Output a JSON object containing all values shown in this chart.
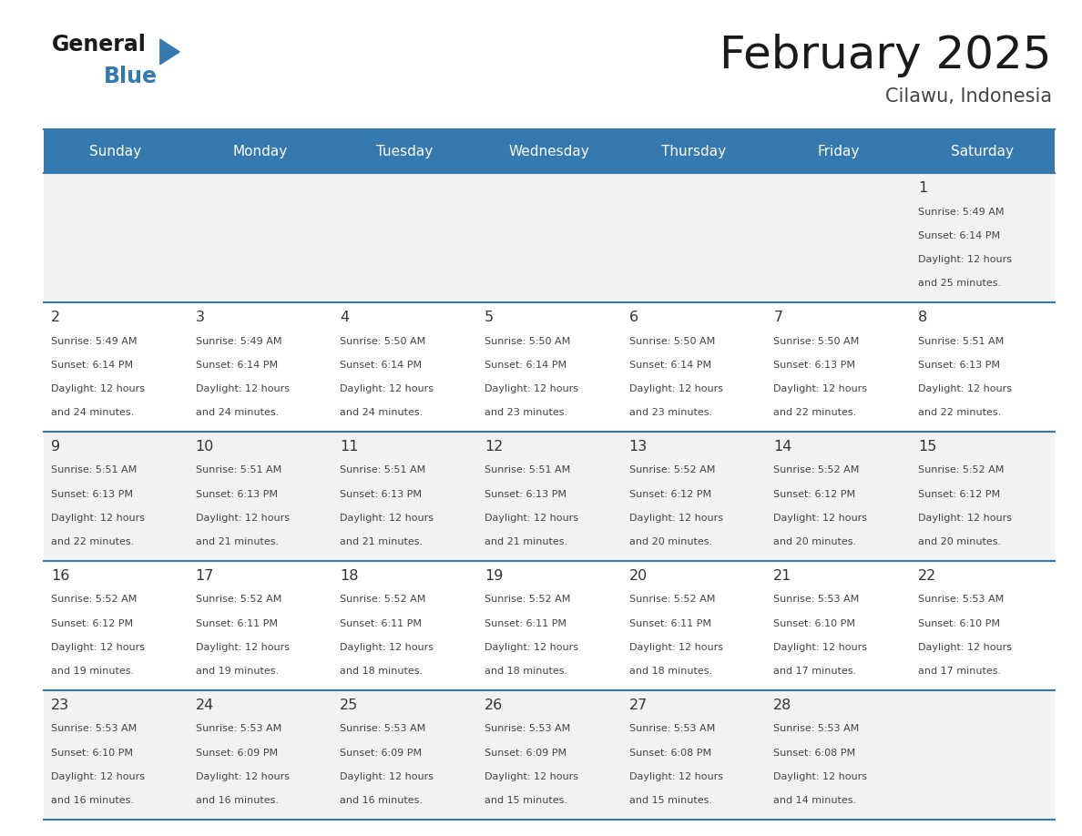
{
  "title": "February 2025",
  "subtitle": "Cilawu, Indonesia",
  "header_bg": "#3579b1",
  "header_text_color": "#ffffff",
  "day_names": [
    "Sunday",
    "Monday",
    "Tuesday",
    "Wednesday",
    "Thursday",
    "Friday",
    "Saturday"
  ],
  "cell_bg_row0": "#f2f2f2",
  "cell_bg_row1": "#ffffff",
  "cell_bg_row2": "#f2f2f2",
  "cell_bg_row3": "#ffffff",
  "cell_bg_row4": "#f2f2f2",
  "border_color": "#3579b1",
  "text_color": "#444444",
  "date_color": "#333333",
  "days": [
    {
      "date": 1,
      "col": 6,
      "row": 0,
      "sunrise": "5:49 AM",
      "sunset": "6:14 PM",
      "daylight": "12 hours and 25 minutes"
    },
    {
      "date": 2,
      "col": 0,
      "row": 1,
      "sunrise": "5:49 AM",
      "sunset": "6:14 PM",
      "daylight": "12 hours and 24 minutes"
    },
    {
      "date": 3,
      "col": 1,
      "row": 1,
      "sunrise": "5:49 AM",
      "sunset": "6:14 PM",
      "daylight": "12 hours and 24 minutes"
    },
    {
      "date": 4,
      "col": 2,
      "row": 1,
      "sunrise": "5:50 AM",
      "sunset": "6:14 PM",
      "daylight": "12 hours and 24 minutes"
    },
    {
      "date": 5,
      "col": 3,
      "row": 1,
      "sunrise": "5:50 AM",
      "sunset": "6:14 PM",
      "daylight": "12 hours and 23 minutes"
    },
    {
      "date": 6,
      "col": 4,
      "row": 1,
      "sunrise": "5:50 AM",
      "sunset": "6:14 PM",
      "daylight": "12 hours and 23 minutes"
    },
    {
      "date": 7,
      "col": 5,
      "row": 1,
      "sunrise": "5:50 AM",
      "sunset": "6:13 PM",
      "daylight": "12 hours and 22 minutes"
    },
    {
      "date": 8,
      "col": 6,
      "row": 1,
      "sunrise": "5:51 AM",
      "sunset": "6:13 PM",
      "daylight": "12 hours and 22 minutes"
    },
    {
      "date": 9,
      "col": 0,
      "row": 2,
      "sunrise": "5:51 AM",
      "sunset": "6:13 PM",
      "daylight": "12 hours and 22 minutes"
    },
    {
      "date": 10,
      "col": 1,
      "row": 2,
      "sunrise": "5:51 AM",
      "sunset": "6:13 PM",
      "daylight": "12 hours and 21 minutes"
    },
    {
      "date": 11,
      "col": 2,
      "row": 2,
      "sunrise": "5:51 AM",
      "sunset": "6:13 PM",
      "daylight": "12 hours and 21 minutes"
    },
    {
      "date": 12,
      "col": 3,
      "row": 2,
      "sunrise": "5:51 AM",
      "sunset": "6:13 PM",
      "daylight": "12 hours and 21 minutes"
    },
    {
      "date": 13,
      "col": 4,
      "row": 2,
      "sunrise": "5:52 AM",
      "sunset": "6:12 PM",
      "daylight": "12 hours and 20 minutes"
    },
    {
      "date": 14,
      "col": 5,
      "row": 2,
      "sunrise": "5:52 AM",
      "sunset": "6:12 PM",
      "daylight": "12 hours and 20 minutes"
    },
    {
      "date": 15,
      "col": 6,
      "row": 2,
      "sunrise": "5:52 AM",
      "sunset": "6:12 PM",
      "daylight": "12 hours and 20 minutes"
    },
    {
      "date": 16,
      "col": 0,
      "row": 3,
      "sunrise": "5:52 AM",
      "sunset": "6:12 PM",
      "daylight": "12 hours and 19 minutes"
    },
    {
      "date": 17,
      "col": 1,
      "row": 3,
      "sunrise": "5:52 AM",
      "sunset": "6:11 PM",
      "daylight": "12 hours and 19 minutes"
    },
    {
      "date": 18,
      "col": 2,
      "row": 3,
      "sunrise": "5:52 AM",
      "sunset": "6:11 PM",
      "daylight": "12 hours and 18 minutes"
    },
    {
      "date": 19,
      "col": 3,
      "row": 3,
      "sunrise": "5:52 AM",
      "sunset": "6:11 PM",
      "daylight": "12 hours and 18 minutes"
    },
    {
      "date": 20,
      "col": 4,
      "row": 3,
      "sunrise": "5:52 AM",
      "sunset": "6:11 PM",
      "daylight": "12 hours and 18 minutes"
    },
    {
      "date": 21,
      "col": 5,
      "row": 3,
      "sunrise": "5:53 AM",
      "sunset": "6:10 PM",
      "daylight": "12 hours and 17 minutes"
    },
    {
      "date": 22,
      "col": 6,
      "row": 3,
      "sunrise": "5:53 AM",
      "sunset": "6:10 PM",
      "daylight": "12 hours and 17 minutes"
    },
    {
      "date": 23,
      "col": 0,
      "row": 4,
      "sunrise": "5:53 AM",
      "sunset": "6:10 PM",
      "daylight": "12 hours and 16 minutes"
    },
    {
      "date": 24,
      "col": 1,
      "row": 4,
      "sunrise": "5:53 AM",
      "sunset": "6:09 PM",
      "daylight": "12 hours and 16 minutes"
    },
    {
      "date": 25,
      "col": 2,
      "row": 4,
      "sunrise": "5:53 AM",
      "sunset": "6:09 PM",
      "daylight": "12 hours and 16 minutes"
    },
    {
      "date": 26,
      "col": 3,
      "row": 4,
      "sunrise": "5:53 AM",
      "sunset": "6:09 PM",
      "daylight": "12 hours and 15 minutes"
    },
    {
      "date": 27,
      "col": 4,
      "row": 4,
      "sunrise": "5:53 AM",
      "sunset": "6:08 PM",
      "daylight": "12 hours and 15 minutes"
    },
    {
      "date": 28,
      "col": 5,
      "row": 4,
      "sunrise": "5:53 AM",
      "sunset": "6:08 PM",
      "daylight": "12 hours and 14 minutes"
    }
  ]
}
